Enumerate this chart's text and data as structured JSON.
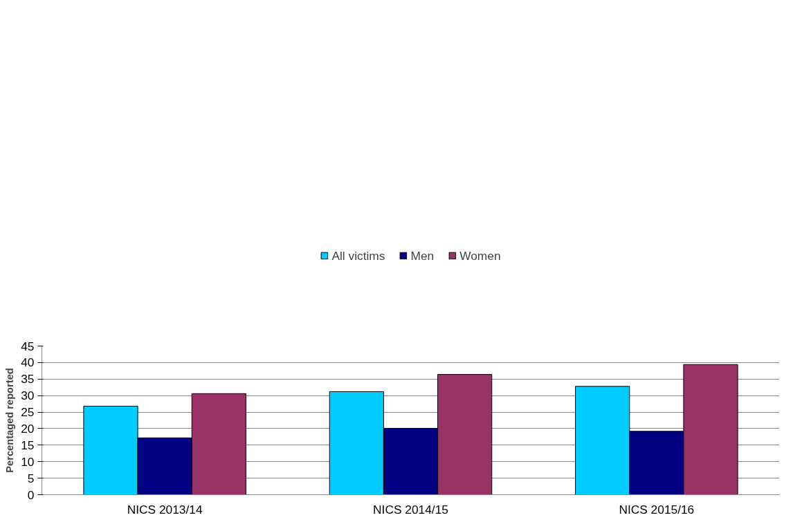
{
  "chart_data": {
    "type": "bar",
    "ylabel": "Percentaged reported",
    "categories": [
      "NICS 2013/14",
      "NICS 2014/15",
      "NICS 2015/16"
    ],
    "series": [
      {
        "name": "All victims",
        "color": "#00ccff",
        "values": [
          26.8,
          31.2,
          32.8
        ]
      },
      {
        "name": "Men",
        "color": "#000080",
        "values": [
          17.2,
          20.1,
          19.2
        ]
      },
      {
        "name": "Women",
        "color": "#993366",
        "values": [
          30.6,
          36.4,
          39.4
        ]
      }
    ],
    "ylim": [
      0,
      45
    ],
    "yticks": [
      0,
      5,
      10,
      15,
      20,
      25,
      30,
      35,
      40,
      45
    ],
    "grid": "y",
    "legend": "top"
  }
}
